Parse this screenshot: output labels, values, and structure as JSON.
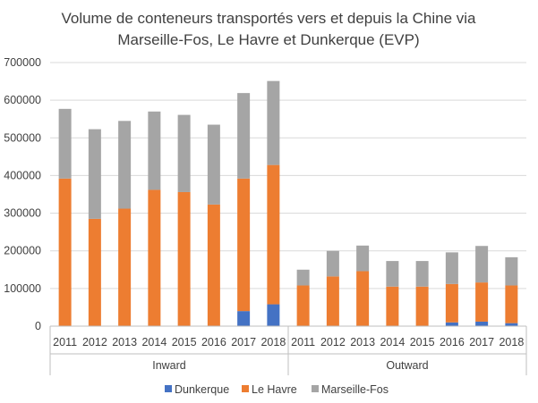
{
  "chart_data": {
    "type": "bar",
    "stacked": true,
    "title_lines": [
      "Volume de conteneurs transportés vers et depuis la Chine via",
      "Marseille-Fos, Le Havre et Dunkerque (EVP)"
    ],
    "ylim": [
      0,
      700000
    ],
    "y_ticks": [
      "0",
      "100000",
      "200000",
      "300000",
      "400000",
      "500000",
      "600000",
      "700000"
    ],
    "y_tick_values": [
      0,
      100000,
      200000,
      300000,
      400000,
      500000,
      600000,
      700000
    ],
    "grid": true,
    "legend_position": "bottom",
    "groups": [
      {
        "label": "Inward",
        "categories": [
          "2011",
          "2012",
          "2013",
          "2014",
          "2015",
          "2016",
          "2017",
          "2018"
        ]
      },
      {
        "label": "Outward",
        "categories": [
          "2011",
          "2012",
          "2013",
          "2014",
          "2015",
          "2016",
          "2017",
          "2018"
        ]
      }
    ],
    "series": [
      {
        "name": "Dunkerque",
        "color": "#4472C4",
        "values": [
          0,
          0,
          0,
          0,
          0,
          0,
          40000,
          58000,
          0,
          0,
          0,
          0,
          0,
          10000,
          12000,
          8000
        ]
      },
      {
        "name": "Le Havre",
        "color": "#ED7D31",
        "values": [
          392000,
          285000,
          312000,
          362000,
          356000,
          323000,
          352000,
          370000,
          108000,
          132000,
          146000,
          105000,
          105000,
          102000,
          104000,
          100000
        ]
      },
      {
        "name": "Marseille-Fos",
        "color": "#A5A5A5",
        "values": [
          185000,
          238000,
          233000,
          208000,
          205000,
          212000,
          227000,
          223000,
          42000,
          68000,
          68000,
          68000,
          68000,
          84000,
          97000,
          75000
        ]
      }
    ]
  }
}
